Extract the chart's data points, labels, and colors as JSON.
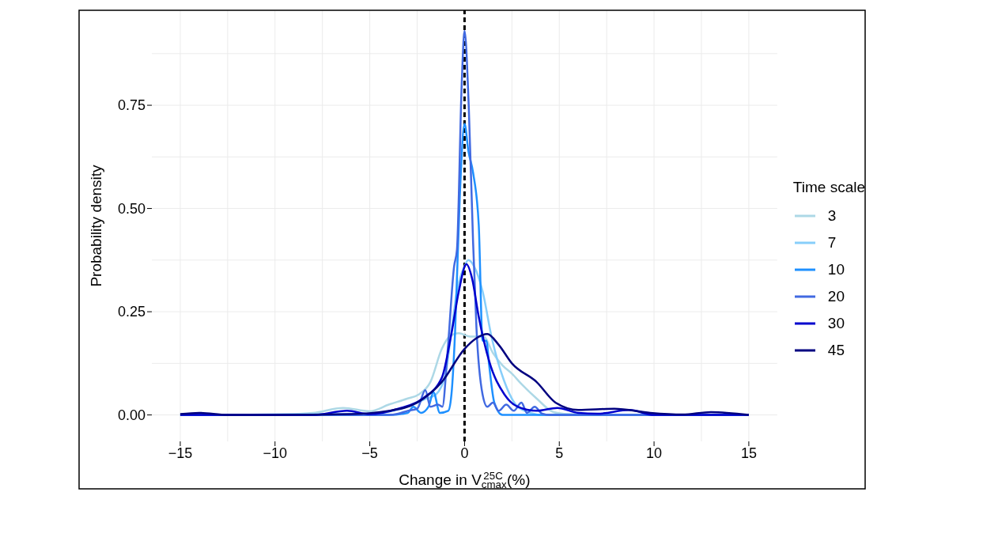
{
  "chart_data": {
    "type": "line",
    "xlabel": "Change in V$_{cmax}$$^{25C}$ (%)",
    "ylabel": "Probability density",
    "legend_title": "Time scale",
    "legend": "right",
    "grid": true,
    "marker": "none",
    "line_style": "solid",
    "xlim": [
      -16.5,
      16.5
    ],
    "xticks": [
      {
        "value": -15,
        "label": "−15"
      },
      {
        "value": -10,
        "label": "−10"
      },
      {
        "value": -5,
        "label": "−5"
      },
      0,
      5,
      10,
      15
    ],
    "ylim": [
      -0.064,
      0.98
    ],
    "yticks": [
      {
        "value": 0,
        "label": "0.00"
      },
      {
        "value": 0.25,
        "label": "0.25"
      },
      {
        "value": 0.5,
        "label": "0.50"
      },
      {
        "value": 0.75,
        "label": "0.75"
      }
    ],
    "ref_lines": [
      {
        "axis": "x",
        "value": 0,
        "color": "#000000",
        "line_style": "dashed"
      }
    ],
    "series": [
      {
        "name": "3",
        "color": "#add8e6",
        "x": [
          -15,
          -10,
          -8,
          -6.4,
          -5,
          -4,
          -3,
          -2.4,
          -1.8,
          -1.2,
          -0.8,
          -0.3,
          0.3,
          1.0,
          1.5,
          2,
          2.5,
          3,
          3.8,
          4.7,
          5.5,
          7,
          15
        ],
        "values": [
          0,
          0.001,
          0.005,
          0.017,
          0.009,
          0.025,
          0.04,
          0.05,
          0.08,
          0.16,
          0.19,
          0.198,
          0.19,
          0.19,
          0.15,
          0.12,
          0.1,
          0.075,
          0.04,
          0.007,
          0.002,
          0,
          0
        ]
      },
      {
        "name": "7",
        "color": "#87cefa",
        "x": [
          -15,
          -5,
          -3,
          -2,
          -1.5,
          -1,
          -0.7,
          -0.4,
          0,
          0.2,
          0.5,
          0.95,
          1.44,
          2.07,
          2.8,
          3.5,
          4,
          15
        ],
        "values": [
          0,
          0.003,
          0.02,
          0.04,
          0.05,
          0.1,
          0.2,
          0.3,
          0.36,
          0.375,
          0.36,
          0.3,
          0.186,
          0.085,
          0.02,
          0.005,
          0,
          0
        ]
      },
      {
        "name": "10",
        "color": "#1e90ff",
        "x": [
          -15,
          -4,
          -3,
          -2.7,
          -2.3,
          -1.9,
          -1.64,
          -1.3,
          -0.86,
          -0.69,
          -0.5,
          -0.25,
          0,
          0.2,
          0.45,
          0.75,
          0.95,
          1.15,
          1.3,
          1.57,
          2,
          15
        ],
        "values": [
          0,
          0,
          0.005,
          0.02,
          0.005,
          0.02,
          0.055,
          0.005,
          0.01,
          0.05,
          0.2,
          0.53,
          0.705,
          0.64,
          0.587,
          0.46,
          0.18,
          0.18,
          0.12,
          0.03,
          0,
          0
        ]
      },
      {
        "name": "20",
        "color": "#4169e1",
        "x": [
          -15,
          -4,
          -3.5,
          -3,
          -2.5,
          -2.07,
          -1.8,
          -1.4,
          -1.17,
          -0.9,
          -0.55,
          -0.4,
          -0.15,
          0,
          0.22,
          0.45,
          0.63,
          0.95,
          1.2,
          1.5,
          1.8,
          2.2,
          2.6,
          3,
          3.3,
          3.7,
          4.1,
          4.5,
          15
        ],
        "values": [
          0,
          0,
          0.003,
          0.01,
          0.015,
          0.06,
          0.02,
          0.025,
          0.02,
          0.15,
          0.36,
          0.4,
          0.8,
          0.93,
          0.75,
          0.42,
          0.21,
          0.05,
          0.02,
          0.03,
          0.01,
          0.025,
          0.01,
          0.03,
          0.005,
          0.02,
          0.003,
          0,
          0
        ]
      },
      {
        "name": "30",
        "color": "#0000cd",
        "x": [
          -15,
          -8,
          -6.2,
          -5,
          -3.5,
          -2.2,
          -1.2,
          -0.68,
          -0.3,
          0.1,
          0.4,
          0.74,
          1.3,
          2.1,
          2.8,
          3.8,
          4.9,
          6,
          7,
          8.7,
          10,
          15
        ],
        "values": [
          0,
          0,
          0.01,
          0.002,
          0.015,
          0.04,
          0.09,
          0.2,
          0.3,
          0.365,
          0.33,
          0.24,
          0.13,
          0.05,
          0.02,
          0.01,
          0.017,
          0.005,
          0.003,
          0.012,
          0,
          0
        ]
      },
      {
        "name": "45",
        "color": "#000080",
        "x": [
          -15,
          -14,
          -12.5,
          -10,
          -6,
          -4,
          -2.5,
          -1.2,
          0,
          0.6,
          1.2,
          1.8,
          2.5,
          3.8,
          4.8,
          6,
          7.9,
          9.8,
          11.5,
          13,
          15
        ],
        "values": [
          0.002,
          0.005,
          0,
          0,
          0.002,
          0.01,
          0.03,
          0.08,
          0.16,
          0.185,
          0.196,
          0.17,
          0.125,
          0.08,
          0.03,
          0.012,
          0.015,
          0.005,
          0.001,
          0.007,
          0
        ]
      }
    ]
  }
}
